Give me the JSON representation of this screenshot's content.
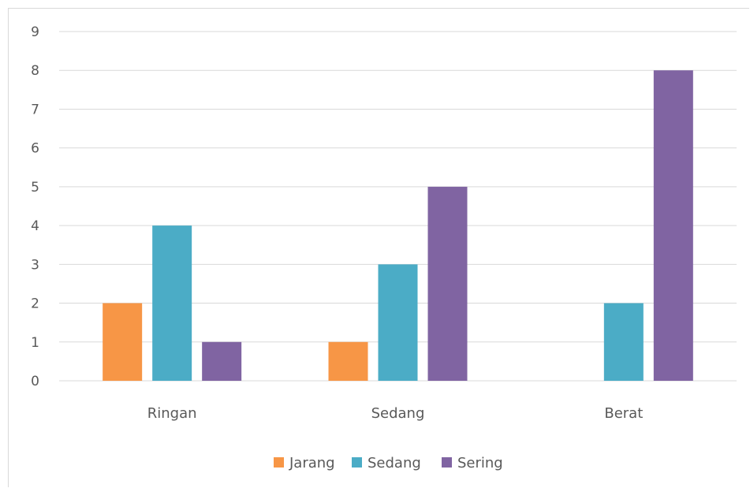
{
  "chart_data": {
    "type": "bar",
    "title": "",
    "xlabel": "",
    "ylabel": "",
    "categories": [
      "Ringan",
      "Sedang",
      "Berat"
    ],
    "series": [
      {
        "name": "Jarang",
        "values": [
          2,
          1,
          0
        ],
        "color": "#f79646"
      },
      {
        "name": "Sedang",
        "values": [
          4,
          3,
          2
        ],
        "color": "#4bacc6"
      },
      {
        "name": "Sering",
        "values": [
          1,
          5,
          8
        ],
        "color": "#8064a2"
      }
    ],
    "ylim": [
      0,
      9
    ],
    "yticks": [
      "0",
      "1",
      "2",
      "3",
      "4",
      "5",
      "6",
      "7",
      "8",
      "9"
    ],
    "grid": true,
    "legend": "bottom",
    "gridline_color": "#d9d9d9",
    "text_color": "#595959"
  }
}
